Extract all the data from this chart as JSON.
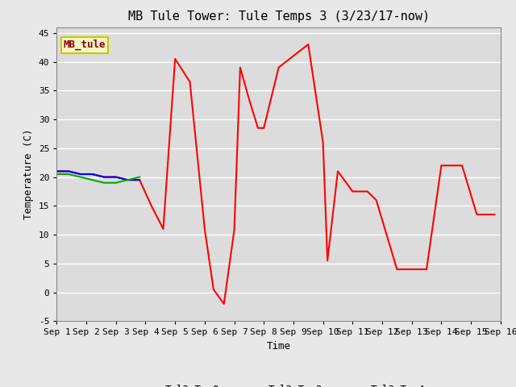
{
  "title": "MB Tule Tower: Tule Temps 3 (3/23/17-now)",
  "xlabel": "Time",
  "ylabel": "Temperature (C)",
  "ylim": [
    -5,
    46
  ],
  "xlim": [
    0,
    15
  ],
  "background_color": "#e8e8e8",
  "plot_bg_color": "#dcdcdc",
  "legend_label": "MB_tule",
  "legend_bg": "#f5f5c8",
  "legend_edge": "#c8c800",
  "legend_text_color": "#8b0000",
  "xtick_labels": [
    "Sep 1",
    "Sep 2",
    "Sep 3",
    "Sep 4",
    "Sep 5",
    "Sep 6",
    "Sep 7",
    "Sep 8",
    "Sep 9",
    "Sep 10",
    "Sep 11",
    "Sep 12",
    "Sep 13",
    "Sep 14",
    "Sep 15",
    "Sep 16"
  ],
  "ytick_values": [
    -5,
    0,
    5,
    10,
    15,
    20,
    25,
    30,
    35,
    40,
    45
  ],
  "series_Ts8_x": [
    0.0,
    0.4,
    0.8,
    1.2,
    1.6,
    2.0,
    2.4,
    2.8,
    3.2,
    3.6,
    4.0,
    4.5,
    5.0,
    5.3,
    5.65,
    6.0,
    6.2,
    6.5,
    6.8,
    7.0,
    7.5,
    8.5,
    9.0,
    9.15,
    9.5,
    10.0,
    10.5,
    10.8,
    11.5,
    12.0,
    12.5,
    13.0,
    13.7,
    14.2,
    14.8
  ],
  "series_Ts8_y": [
    21.0,
    21.0,
    20.5,
    20.5,
    20.0,
    20.0,
    19.5,
    19.5,
    15.0,
    11.0,
    40.5,
    36.5,
    11.0,
    0.5,
    -2.0,
    10.8,
    39.0,
    33.5,
    28.5,
    28.5,
    39.0,
    43.0,
    26.0,
    5.5,
    21.0,
    17.5,
    17.5,
    16.0,
    4.0,
    4.0,
    4.0,
    22.0,
    22.0,
    13.5,
    13.5
  ],
  "series_Ts2_x": [
    0.0,
    0.4,
    0.8,
    1.2,
    1.6,
    2.0,
    2.4,
    2.8
  ],
  "series_Ts2_y": [
    21.0,
    21.0,
    20.5,
    20.5,
    20.0,
    20.0,
    19.5,
    19.5
  ],
  "series_Tw4_x": [
    0.0,
    0.4,
    0.8,
    1.2,
    1.6,
    2.0,
    2.4,
    2.8
  ],
  "series_Tw4_y": [
    20.5,
    20.5,
    20.0,
    19.5,
    19.0,
    19.0,
    19.5,
    20.0
  ],
  "line_color_Ts8": "#ff0000",
  "line_color_Ts2": "#0000ff",
  "line_color_Tw4": "#00aa00",
  "line_width": 1.5,
  "grid_color": "#ffffff",
  "font_family": "monospace",
  "title_fontsize": 11,
  "axis_fontsize": 8,
  "label_fontsize": 9
}
